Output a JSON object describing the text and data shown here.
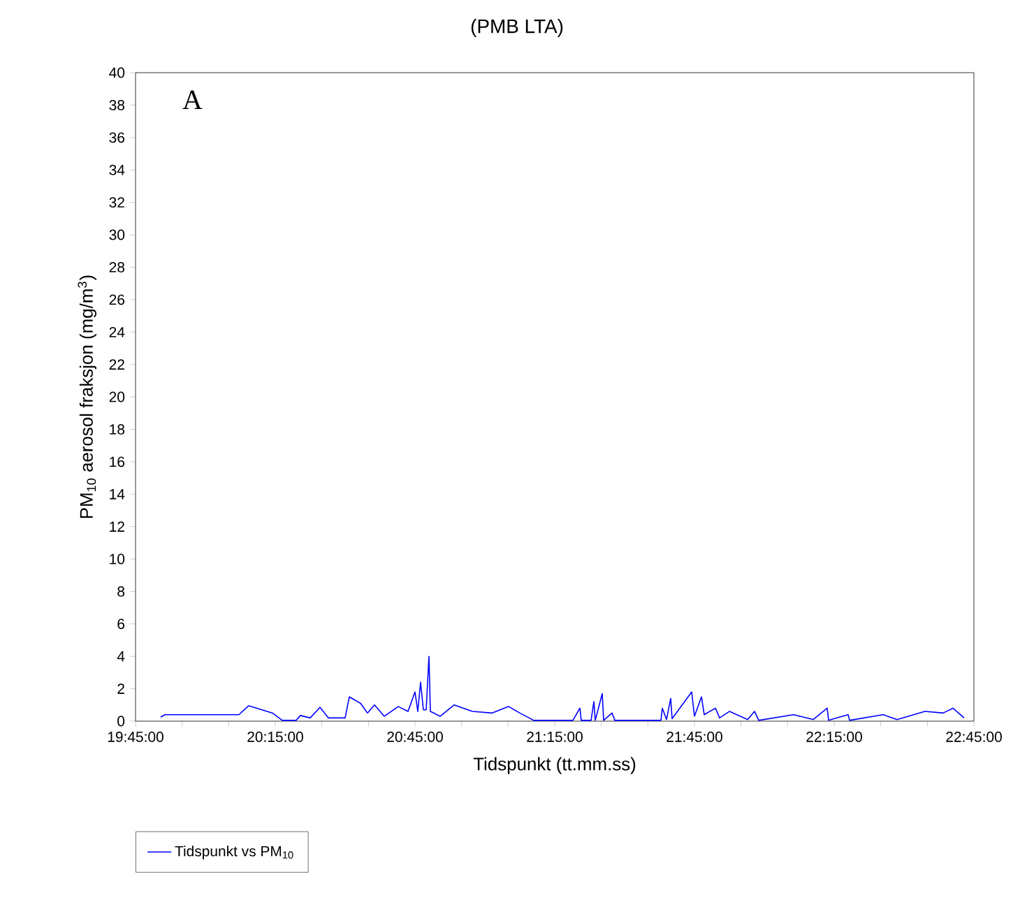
{
  "chart_data": {
    "type": "line",
    "title": "(PMB LTA)",
    "xlabel": "Tidspunkt (tt.mm.ss)",
    "ylabel": "PM$_{10}$ aerosol fraksjon (mg/m$^{3}$)",
    "annotations": [
      "A"
    ],
    "xlim": [
      19.75,
      22.75
    ],
    "xticks": [
      {
        "value": 19.75,
        "label": "19:45:00"
      },
      {
        "value": 19.9167,
        "label": null
      },
      {
        "value": 20.0833,
        "label": null
      },
      {
        "value": 20.25,
        "label": "20:15:00"
      },
      {
        "value": 20.4167,
        "label": null
      },
      {
        "value": 20.5833,
        "label": null
      },
      {
        "value": 20.75,
        "label": "20:45:00"
      },
      {
        "value": 20.9167,
        "label": null
      },
      {
        "value": 21.0833,
        "label": null
      },
      {
        "value": 21.25,
        "label": "21:15:00"
      },
      {
        "value": 21.4167,
        "label": null
      },
      {
        "value": 21.5833,
        "label": null
      },
      {
        "value": 21.75,
        "label": "21:45:00"
      },
      {
        "value": 21.9167,
        "label": null
      },
      {
        "value": 22.0833,
        "label": null
      },
      {
        "value": 22.25,
        "label": "22:15:00"
      },
      {
        "value": 22.4167,
        "label": null
      },
      {
        "value": 22.5833,
        "label": null
      },
      {
        "value": 22.75,
        "label": "22:45:00"
      }
    ],
    "ylim": [
      0,
      40
    ],
    "yticks": [
      0,
      2,
      4,
      6,
      8,
      10,
      12,
      14,
      16,
      18,
      20,
      22,
      24,
      26,
      28,
      30,
      32,
      34,
      36,
      38,
      40
    ],
    "grid": false,
    "legend": "bottom",
    "marker": "none",
    "line_style": "solid",
    "series": [
      {
        "name": "Tidspunkt vs PM$_{10}$",
        "color": "#0000ff",
        "x": [
          19.84,
          19.855,
          19.905,
          20.12,
          20.155,
          20.24,
          20.275,
          20.325,
          20.34,
          20.375,
          20.41,
          20.44,
          20.5,
          20.515,
          20.555,
          20.58,
          20.605,
          20.64,
          20.69,
          20.725,
          20.75,
          20.76,
          20.77,
          20.78,
          20.79,
          20.8,
          20.805,
          20.84,
          20.89,
          20.955,
          21.025,
          21.085,
          21.125,
          21.175,
          21.315,
          21.34,
          21.345,
          21.38,
          21.39,
          21.395,
          21.42,
          21.425,
          21.455,
          21.465,
          21.63,
          21.635,
          21.65,
          21.665,
          21.67,
          21.74,
          21.75,
          21.775,
          21.785,
          21.825,
          21.84,
          21.875,
          21.94,
          21.965,
          21.98,
          22.105,
          22.175,
          22.225,
          22.23,
          22.3,
          22.305,
          22.425,
          22.475,
          22.575,
          22.64,
          22.675,
          22.715
        ],
        "values": [
          0.25,
          0.4,
          0.4,
          0.4,
          0.95,
          0.5,
          0.05,
          0.05,
          0.35,
          0.2,
          0.85,
          0.2,
          0.2,
          1.5,
          1.1,
          0.5,
          1.0,
          0.3,
          0.9,
          0.6,
          1.8,
          0.6,
          2.4,
          0.7,
          0.7,
          4.0,
          0.6,
          0.3,
          1.0,
          0.6,
          0.5,
          0.9,
          0.5,
          0.05,
          0.05,
          0.8,
          0.05,
          0.05,
          1.2,
          0.05,
          1.7,
          0.05,
          0.5,
          0.05,
          0.05,
          0.8,
          0.1,
          1.4,
          0.15,
          1.8,
          0.3,
          1.5,
          0.4,
          0.8,
          0.2,
          0.6,
          0.1,
          0.6,
          0.05,
          0.4,
          0.1,
          0.8,
          0.05,
          0.4,
          0.05,
          0.4,
          0.1,
          0.6,
          0.5,
          0.8,
          0.2
        ]
      }
    ]
  }
}
